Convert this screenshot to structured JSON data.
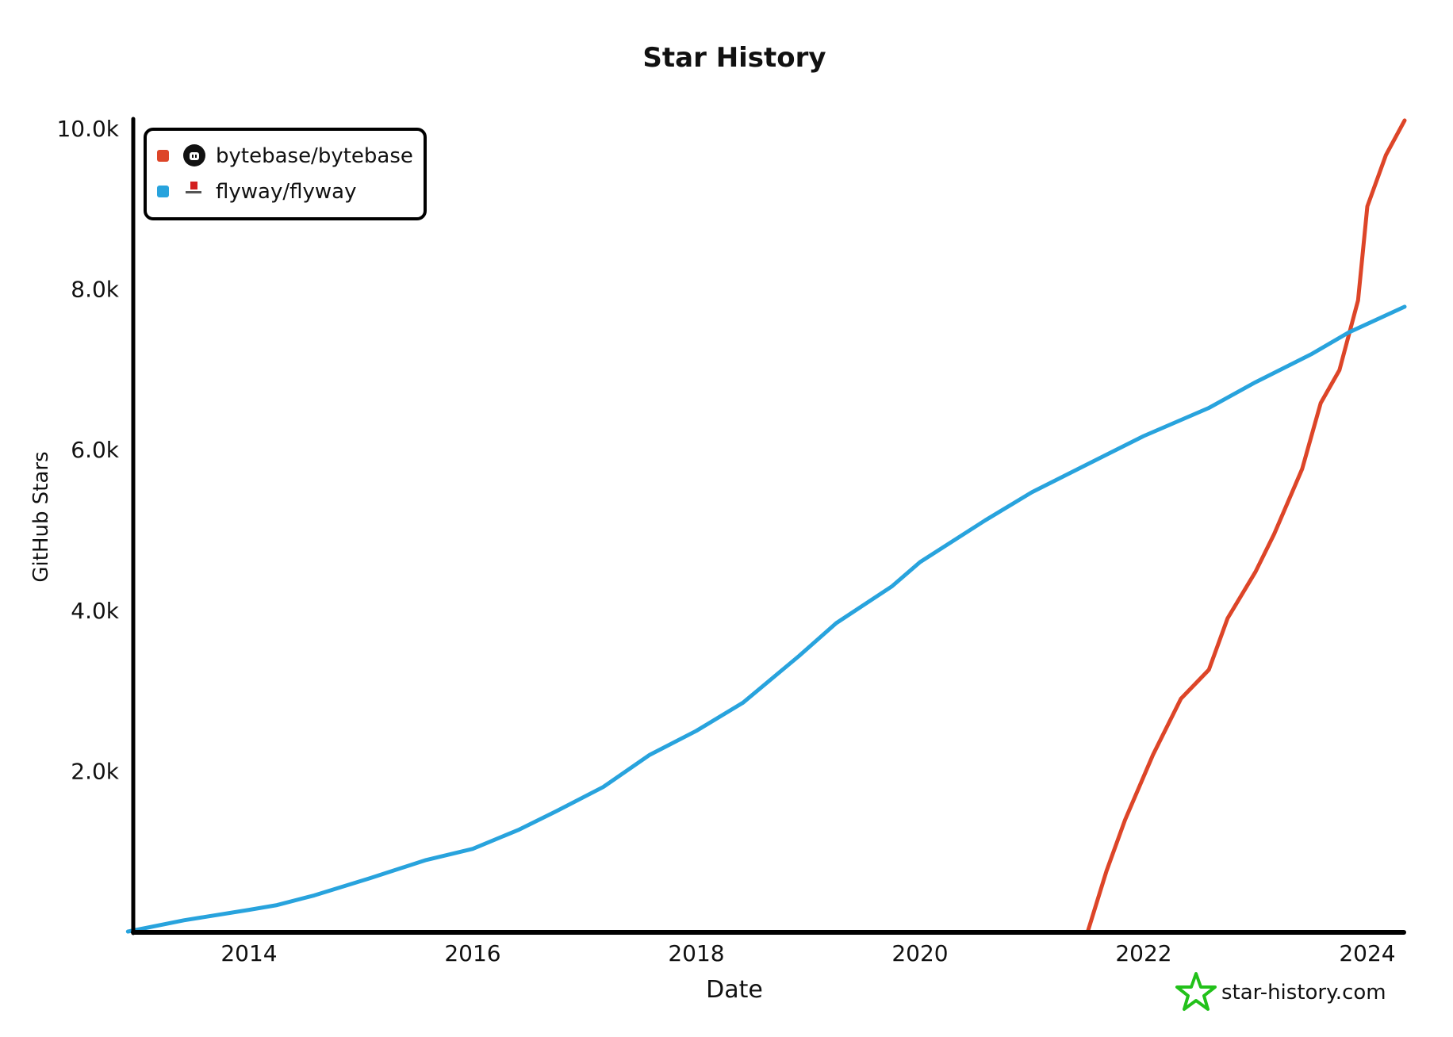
{
  "chart_data": {
    "type": "line",
    "title": "Star History",
    "xlabel": "Date",
    "ylabel": "GitHub Stars",
    "xlim": [
      "2012-12",
      "2024-05"
    ],
    "ylim": [
      0,
      10000
    ],
    "x_ticks": [
      "2014",
      "2016",
      "2018",
      "2020",
      "2022",
      "2024"
    ],
    "y_ticks": [
      {
        "value": 2000,
        "label": "2.0k"
      },
      {
        "value": 4000,
        "label": "4.0k"
      },
      {
        "value": 6000,
        "label": "6.0k"
      },
      {
        "value": 8000,
        "label": "8.0k"
      },
      {
        "value": 10000,
        "label": "10.0k"
      }
    ],
    "grid": false,
    "legend_position": "top-left",
    "series": [
      {
        "name": "bytebase/bytebase",
        "color": "#dd4528",
        "icon": "github-icon",
        "points": [
          [
            "2021-07",
            0
          ],
          [
            "2021-09",
            750
          ],
          [
            "2021-11",
            1390
          ],
          [
            "2022-02",
            2200
          ],
          [
            "2022-05",
            2900
          ],
          [
            "2022-08",
            3260
          ],
          [
            "2022-10",
            3900
          ],
          [
            "2023-01",
            4480
          ],
          [
            "2023-03",
            4950
          ],
          [
            "2023-06",
            5760
          ],
          [
            "2023-08",
            6580
          ],
          [
            "2023-10",
            6990
          ],
          [
            "2023-12",
            7860
          ],
          [
            "2024-01",
            9030
          ],
          [
            "2024-03",
            9670
          ],
          [
            "2024-05",
            10100
          ]
        ]
      },
      {
        "name": "flyway/flyway",
        "color": "#28a3dd",
        "icon": "flyway-logo-icon",
        "points": [
          [
            "2012-12",
            0
          ],
          [
            "2013-06",
            140
          ],
          [
            "2014-01",
            270
          ],
          [
            "2014-04",
            330
          ],
          [
            "2014-08",
            450
          ],
          [
            "2015-02",
            665
          ],
          [
            "2015-08",
            890
          ],
          [
            "2016-01",
            1030
          ],
          [
            "2016-06",
            1270
          ],
          [
            "2016-10",
            1500
          ],
          [
            "2017-03",
            1800
          ],
          [
            "2017-08",
            2200
          ],
          [
            "2018-01",
            2500
          ],
          [
            "2018-06",
            2850
          ],
          [
            "2018-12",
            3430
          ],
          [
            "2019-04",
            3840
          ],
          [
            "2019-10",
            4300
          ],
          [
            "2020-01",
            4600
          ],
          [
            "2020-08",
            5120
          ],
          [
            "2021-01",
            5470
          ],
          [
            "2021-07",
            5820
          ],
          [
            "2022-01",
            6170
          ],
          [
            "2022-08",
            6520
          ],
          [
            "2023-01",
            6840
          ],
          [
            "2023-07",
            7190
          ],
          [
            "2023-11",
            7460
          ],
          [
            "2024-05",
            7780
          ]
        ]
      }
    ],
    "watermark": "star-history.com",
    "watermark_color": "#22c11a"
  }
}
